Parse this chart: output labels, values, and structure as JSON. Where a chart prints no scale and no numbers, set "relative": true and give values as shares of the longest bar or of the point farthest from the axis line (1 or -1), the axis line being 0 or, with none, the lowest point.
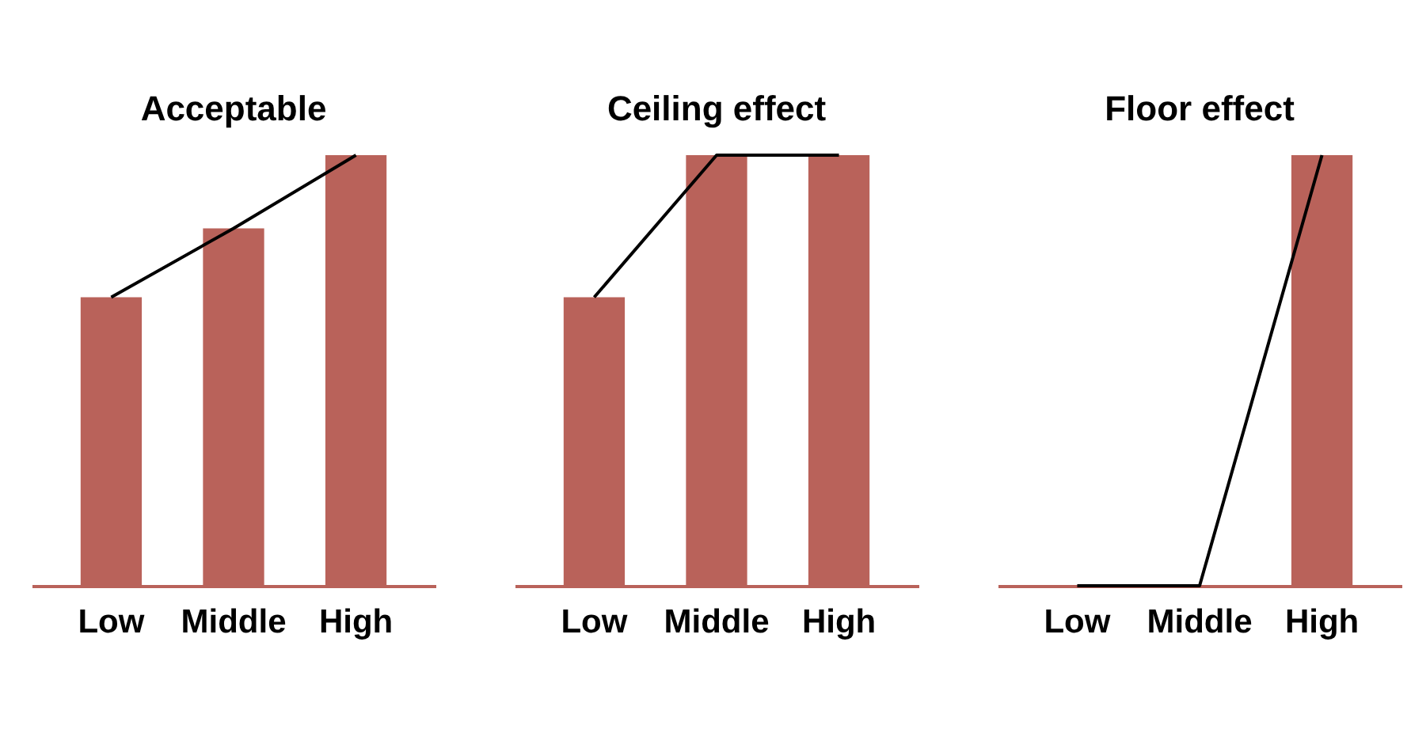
{
  "chart_data": [
    {
      "type": "bar",
      "title": "Acceptable",
      "categories": [
        "Low",
        "Middle",
        "High"
      ],
      "relative": true,
      "series": [
        {
          "color": "#b9625a",
          "values": [
            0.67,
            0.83,
            1
          ]
        },
        {
          "type": "line",
          "color": "#000000",
          "values": [
            0.67,
            0.83,
            1
          ]
        }
      ]
    },
    {
      "type": "bar",
      "title": "Ceiling effect",
      "categories": [
        "Low",
        "Middle",
        "High"
      ],
      "relative": true,
      "series": [
        {
          "color": "#b9625a",
          "values": [
            0.67,
            1,
            1
          ]
        },
        {
          "type": "line",
          "color": "#000000",
          "values": [
            0.67,
            1,
            1
          ]
        }
      ]
    },
    {
      "type": "bar",
      "title": "Floor effect",
      "categories": [
        "Low",
        "Middle",
        "High"
      ],
      "relative": true,
      "series": [
        {
          "color": "#b9625a",
          "values": [
            0,
            0,
            1
          ]
        },
        {
          "type": "line",
          "color": "#000000",
          "values": [
            0,
            0,
            1
          ]
        }
      ]
    }
  ]
}
